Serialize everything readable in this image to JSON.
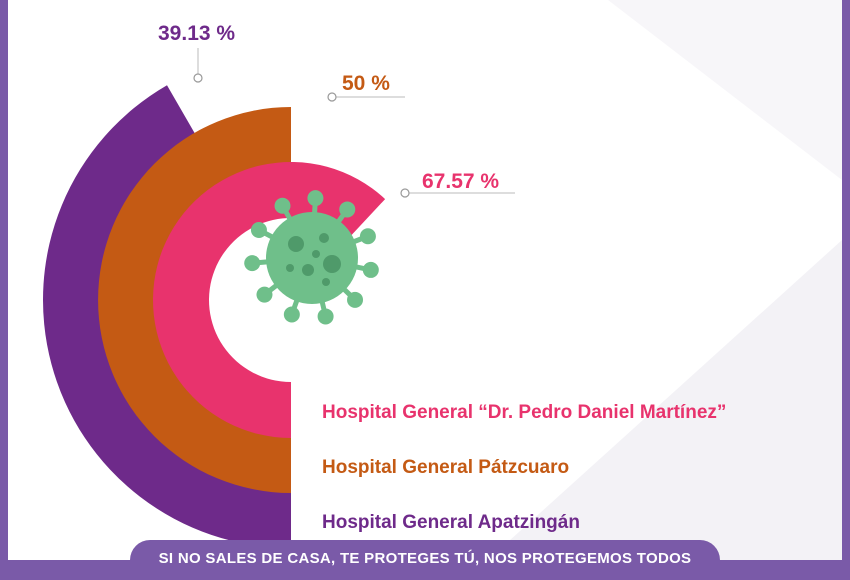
{
  "chart_data": {
    "type": "radial-bar",
    "series": [
      {
        "name": "Hospital General “Dr. Pedro Daniel Martínez”",
        "value": 67.57,
        "label": "67.57 %",
        "color": "#e8336d"
      },
      {
        "name": "Hospital General Pátzcuaro",
        "value": 50,
        "label": "50 %",
        "color": "#c45a14"
      },
      {
        "name": "Hospital General Apatzingán",
        "value": 39.13,
        "label": "39.13 %",
        "color": "#6e2a8a"
      }
    ],
    "virus_icon_color": "#6fbf8a"
  },
  "footer": {
    "banner_text": "SI NO SALES DE CASA, TE PROTEGES TÚ, NOS PROTEGEMOS TODOS"
  },
  "colors": {
    "frame": "#7a5aa8",
    "background": "#ffffff",
    "shade": "#f0eff3"
  }
}
